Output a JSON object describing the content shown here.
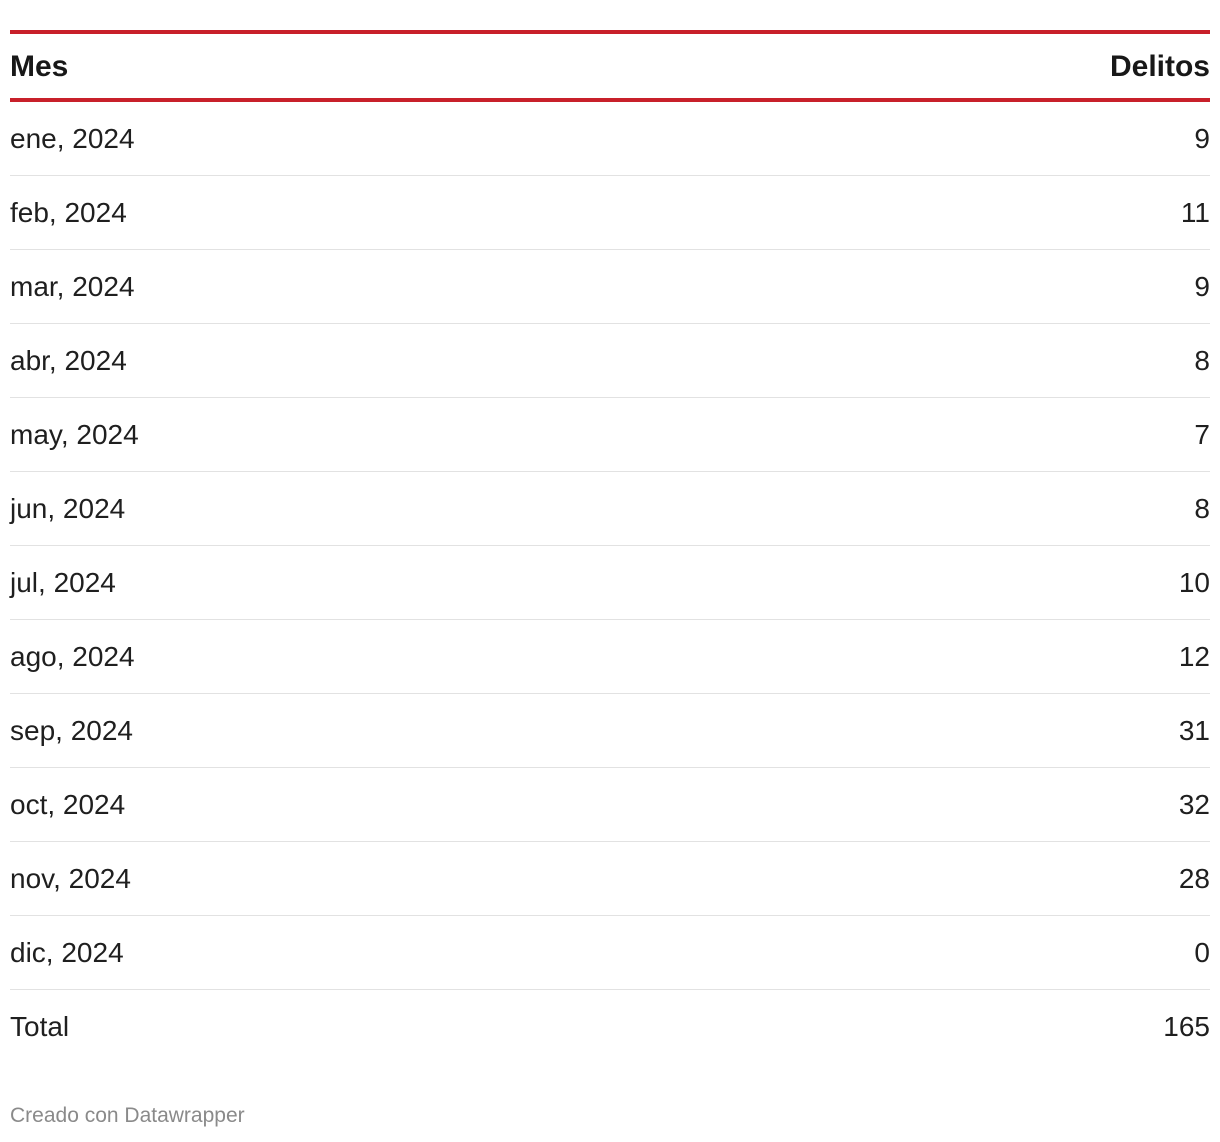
{
  "chart_data": {
    "type": "table",
    "columns": [
      "Mes",
      "Delitos"
    ],
    "rows": [
      {
        "month": "ene, 2024",
        "value": "9"
      },
      {
        "month": "feb, 2024",
        "value": "11"
      },
      {
        "month": "mar, 2024",
        "value": "9"
      },
      {
        "month": "abr, 2024",
        "value": "8"
      },
      {
        "month": "may, 2024",
        "value": "7"
      },
      {
        "month": "jun, 2024",
        "value": "8"
      },
      {
        "month": "jul, 2024",
        "value": "10"
      },
      {
        "month": "ago, 2024",
        "value": "12"
      },
      {
        "month": "sep, 2024",
        "value": "31"
      },
      {
        "month": "oct, 2024",
        "value": "32"
      },
      {
        "month": "nov, 2024",
        "value": "28"
      },
      {
        "month": "dic, 2024",
        "value": "0"
      }
    ],
    "total": {
      "label": "Total",
      "value": "165"
    }
  },
  "colors": {
    "accent": "#c8202a",
    "row_divider": "#e2e2e2",
    "footer_text": "#8a8a8a"
  },
  "footer": {
    "credit": "Creado con Datawrapper"
  }
}
